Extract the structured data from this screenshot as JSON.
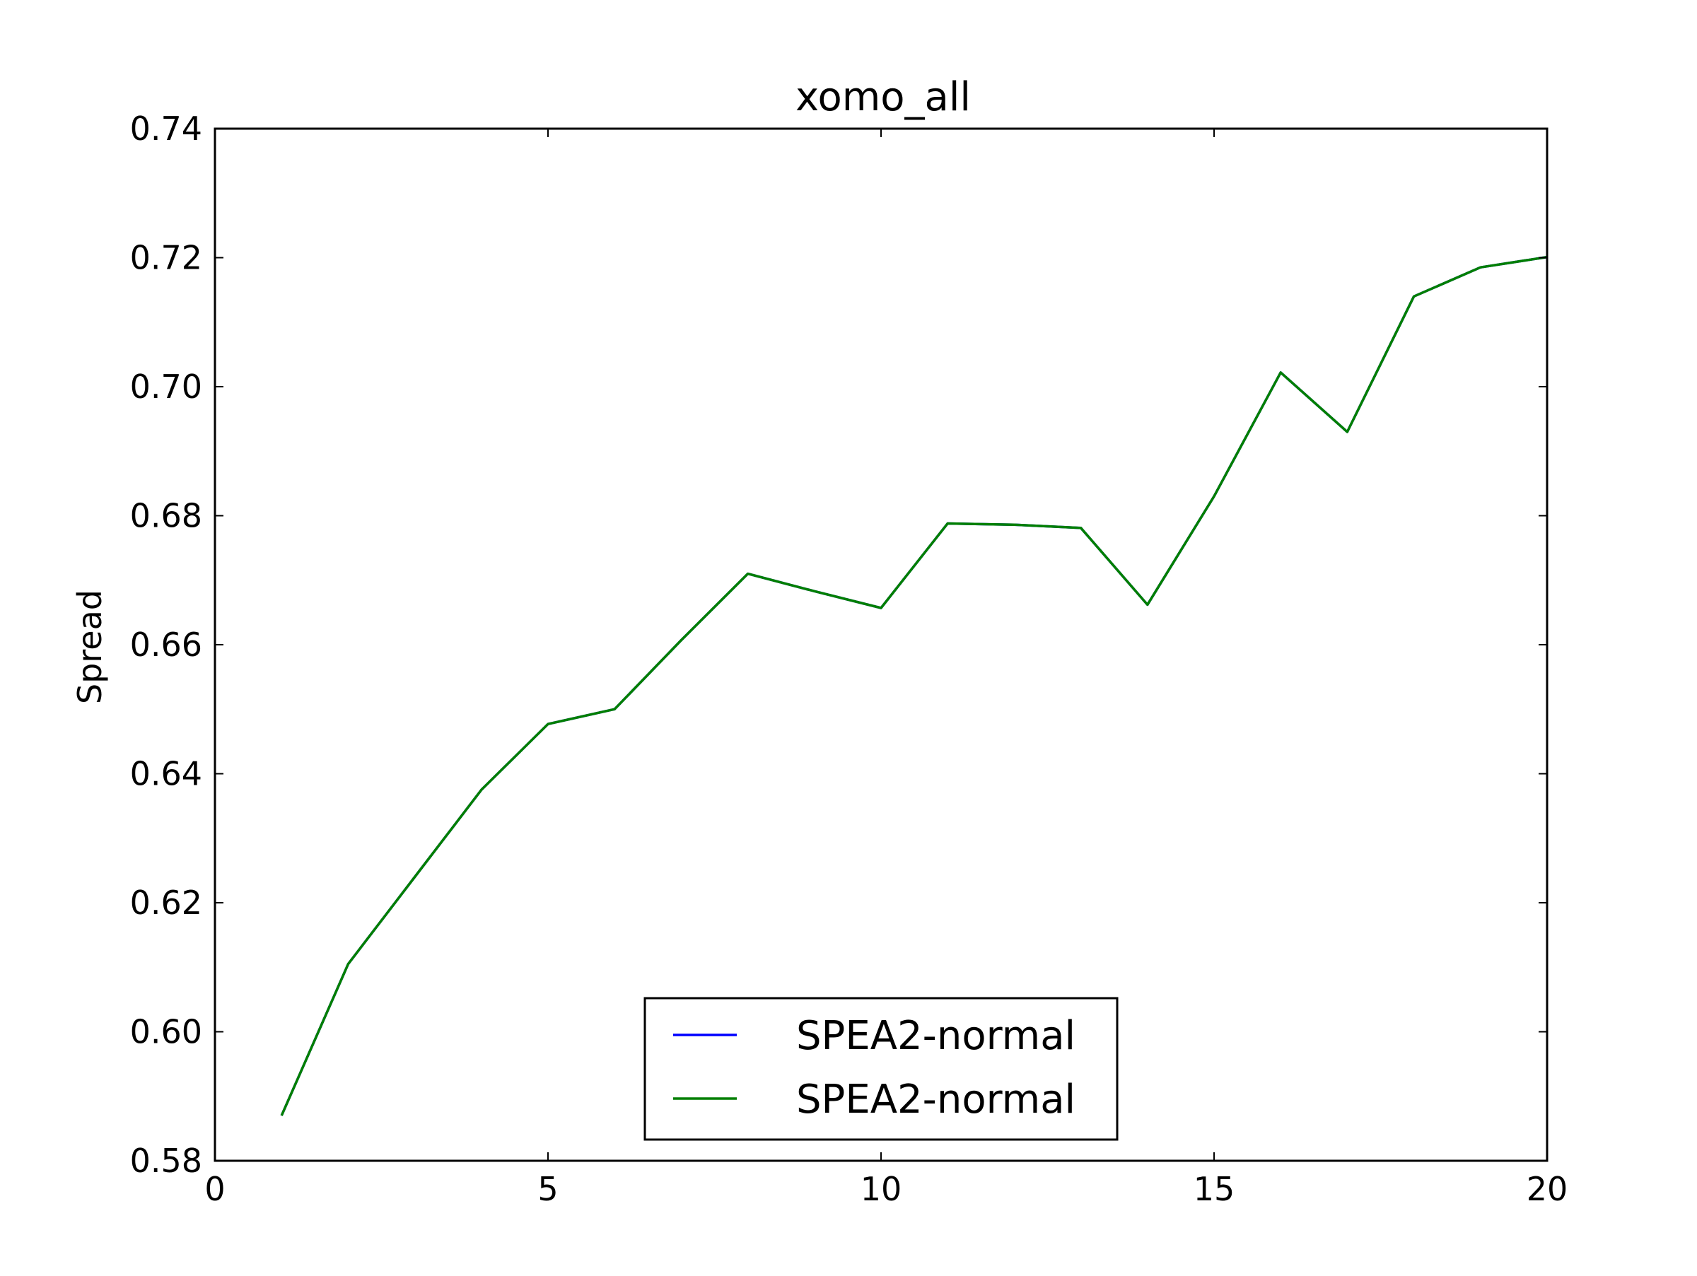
{
  "chart_data": {
    "type": "line",
    "title": "xomo_all",
    "xlabel": "",
    "ylabel": "Spread",
    "xlim": [
      0,
      20
    ],
    "ylim": [
      0.58,
      0.74
    ],
    "x_ticks": [
      "0",
      "5",
      "10",
      "15",
      "20"
    ],
    "y_ticks": [
      "0.58",
      "0.60",
      "0.62",
      "0.64",
      "0.66",
      "0.68",
      "0.70",
      "0.72",
      "0.74"
    ],
    "grid": false,
    "legend_position": "lower center",
    "x": [
      1,
      2,
      3,
      4,
      5,
      6,
      7,
      8,
      9,
      10,
      11,
      12,
      13,
      14,
      15,
      16,
      17,
      18,
      19,
      20
    ],
    "series": [
      {
        "name": "SPEA2-normal",
        "color": "#0000ff",
        "values": [
          0.587,
          0.6105,
          0.624,
          0.6375,
          0.6477,
          0.65,
          0.6607,
          0.671,
          0.6683,
          0.6657,
          0.6788,
          0.6786,
          0.6781,
          0.6662,
          0.683,
          0.7022,
          0.693,
          0.714,
          0.7185,
          0.7201
        ]
      },
      {
        "name": "SPEA2-normal",
        "color": "#007f00",
        "values": [
          0.587,
          0.6105,
          0.624,
          0.6375,
          0.6477,
          0.65,
          0.6607,
          0.671,
          0.6683,
          0.6657,
          0.6788,
          0.6786,
          0.6781,
          0.6662,
          0.683,
          0.7022,
          0.693,
          0.714,
          0.7185,
          0.7201
        ]
      }
    ]
  }
}
